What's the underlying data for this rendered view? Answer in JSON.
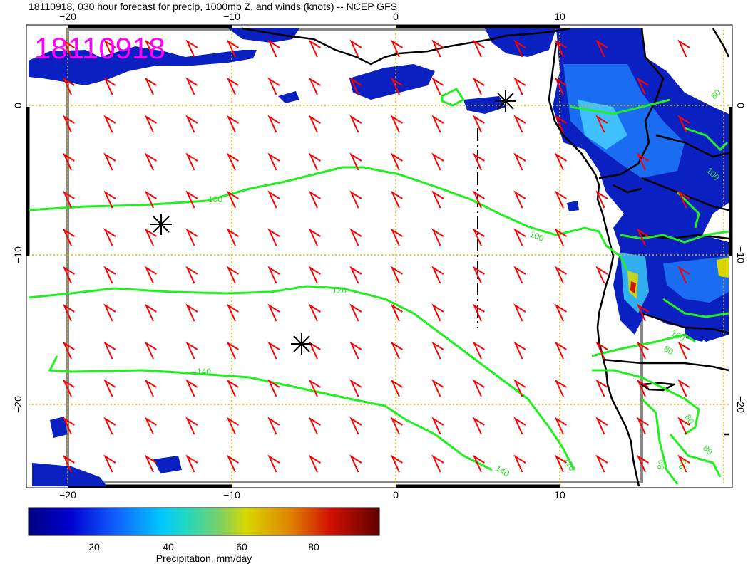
{
  "title": "18110918, 030 hour forecast for precip, 1000mb Z, and winds (knots) -- NCEP GFS",
  "stamp": "18110918",
  "stamp_color": "#ff00ff",
  "wind_barb_color": "#ff0000",
  "contour_color": "#22ee22",
  "map": {
    "lon_ticks_top": [
      "−20",
      "−10",
      "0",
      "10"
    ],
    "lon_ticks_bottom": [
      "−20",
      "−10",
      "0",
      "10"
    ],
    "lat_ticks_left": [
      "0",
      "−10",
      "−20"
    ],
    "lat_ticks_right": [
      "0",
      "−10",
      "−20"
    ],
    "contour_labels": [
      "100",
      "100",
      "120",
      "140",
      "140",
      "120",
      "100",
      "80",
      "80",
      "80",
      "80",
      "100",
      "80",
      "80"
    ]
  },
  "colorbar": {
    "ticks": [
      "20",
      "40",
      "60",
      "80"
    ],
    "label": "Precipitation, mm/day",
    "colors": [
      "#000080",
      "#0000d0",
      "#1060ff",
      "#00b0ff",
      "#20d8c0",
      "#80d060",
      "#d8d800",
      "#e08000",
      "#d01000",
      "#800000"
    ]
  }
}
